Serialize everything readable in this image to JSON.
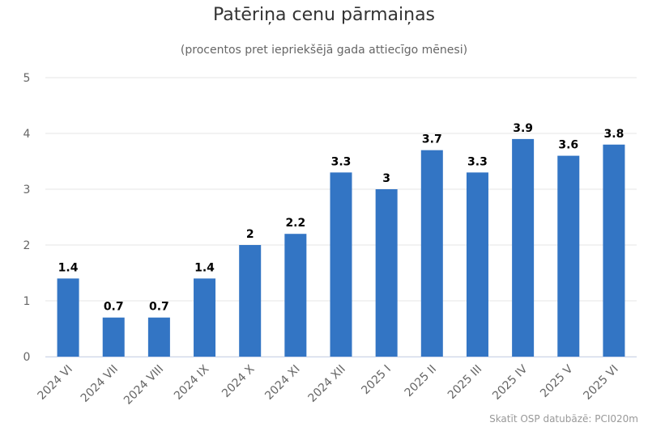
{
  "title": "Patēriņa cenu pārmaiņas",
  "subtitle": "(procentos pret iepriekšējā gada attiecīgo mēnesi)",
  "credit": "Skatīt OSP datubāzē: PCI020m",
  "colors": {
    "bar": "#3375c4",
    "grid": "#e6e6e6",
    "axis_text": "#666666",
    "label_text": "#000000"
  },
  "chart_data": {
    "type": "bar",
    "categories": [
      "2024 VI",
      "2024 VII",
      "2024 VIII",
      "2024 IX",
      "2024 X",
      "2024 XI",
      "2024 XII",
      "2025 I",
      "2025 II",
      "2025 III",
      "2025 IV",
      "2025 V",
      "2025 VI"
    ],
    "values": [
      1.4,
      0.7,
      0.7,
      1.4,
      2,
      2.2,
      3.3,
      3,
      3.7,
      3.3,
      3.9,
      3.6,
      3.8
    ],
    "data_labels": [
      "1.4",
      "0.7",
      "0.7",
      "1.4",
      "2",
      "2.2",
      "3.3",
      "3",
      "3.7",
      "3.3",
      "3.9",
      "3.6",
      "3.8"
    ],
    "yticks": [
      0,
      1,
      2,
      3,
      4,
      5
    ],
    "ylim": [
      0,
      5
    ],
    "grid": true,
    "legend": false
  }
}
